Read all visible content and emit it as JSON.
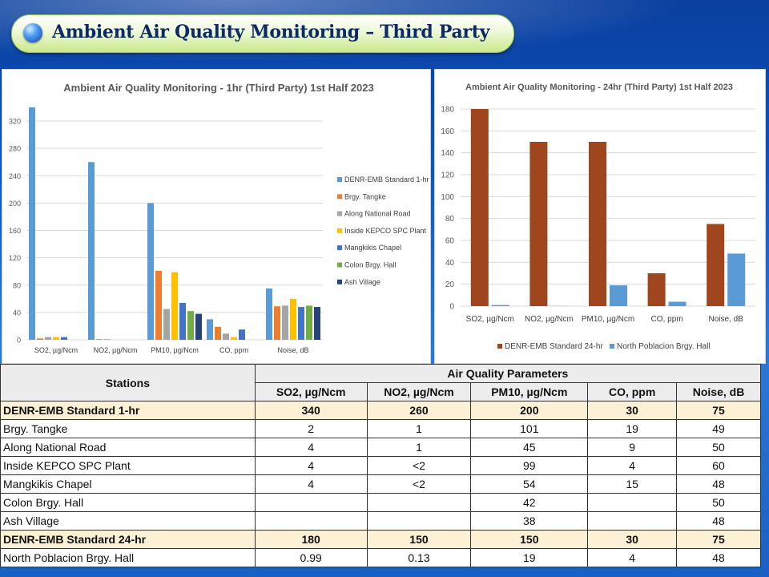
{
  "slide": {
    "title": "Ambient Air Quality Monitoring – Third Party"
  },
  "colors": {
    "title_text": "#0b2a66",
    "std_row_bg": "#fdf1d5"
  },
  "chart_data": [
    {
      "type": "bar",
      "title": "Ambient Air Quality Monitoring - 1hr (Third Party) 1st Half 2023",
      "categories": [
        "SO2, µg/Ncm",
        "NO2, µg/Ncm",
        "PM10, µg/Ncm",
        "CO, ppm",
        "Noise, dB"
      ],
      "ylim": [
        0,
        340
      ],
      "yticks": [
        0,
        40,
        80,
        120,
        160,
        200,
        240,
        280,
        320
      ],
      "grid": true,
      "legend_position": "right",
      "series": [
        {
          "name": "DENR-EMB Standard 1-hr",
          "color": "#5b9bd5",
          "values": [
            340,
            260,
            200,
            30,
            75
          ]
        },
        {
          "name": "Brgy. Tangke",
          "color": "#ed7d31",
          "values": [
            2,
            1,
            101,
            19,
            49
          ]
        },
        {
          "name": "Along National Road",
          "color": "#a5a5a5",
          "values": [
            4,
            1,
            45,
            9,
            50
          ]
        },
        {
          "name": "Inside KEPCO SPC Plant",
          "color": "#ffc000",
          "values": [
            4,
            0,
            99,
            4,
            60
          ]
        },
        {
          "name": "Mangkikis Chapel",
          "color": "#4472c4",
          "values": [
            4,
            0,
            54,
            15,
            48
          ]
        },
        {
          "name": "Colon Brgy. Hall",
          "color": "#70ad47",
          "values": [
            null,
            null,
            42,
            null,
            50
          ]
        },
        {
          "name": "Ash Village",
          "color": "#264478",
          "values": [
            null,
            null,
            38,
            null,
            48
          ]
        }
      ]
    },
    {
      "type": "bar",
      "title": "Ambient Air Quality Monitoring - 24hr (Third Party) 1st Half 2023",
      "categories": [
        "SO2, µg/Ncm",
        "NO2, µg/Ncm",
        "PM10, µg/Ncm",
        "CO, ppm",
        "Noise, dB"
      ],
      "ylim": [
        0,
        180
      ],
      "yticks": [
        0,
        20,
        40,
        60,
        80,
        100,
        120,
        140,
        160,
        180
      ],
      "grid": true,
      "legend_position": "bottom",
      "series": [
        {
          "name": "DENR-EMB Standard 24-hr",
          "color": "#a0461f",
          "values": [
            180,
            150,
            150,
            30,
            75
          ]
        },
        {
          "name": "North Poblacion Brgy. Hall",
          "color": "#5b9bd5",
          "values": [
            0.99,
            0.13,
            19,
            4,
            48
          ]
        }
      ]
    }
  ],
  "table": {
    "corner_header": "Stations",
    "group_header": "Air Quality Parameters",
    "columns": [
      "SO2, µg/Ncm",
      "NO2, µg/Ncm",
      "PM10, µg/Ncm",
      "CO, ppm",
      "Noise, dB"
    ],
    "rows": [
      {
        "station": "DENR-EMB Standard 1-hr",
        "standard": true,
        "values": [
          "340",
          "260",
          "200",
          "30",
          "75"
        ]
      },
      {
        "station": "Brgy. Tangke",
        "standard": false,
        "values": [
          "2",
          "1",
          "101",
          "19",
          "49"
        ]
      },
      {
        "station": "Along National Road",
        "standard": false,
        "values": [
          "4",
          "1",
          "45",
          "9",
          "50"
        ]
      },
      {
        "station": "Inside KEPCO SPC Plant",
        "standard": false,
        "values": [
          "4",
          "<2",
          "99",
          "4",
          "60"
        ]
      },
      {
        "station": "Mangkikis Chapel",
        "standard": false,
        "values": [
          "4",
          "<2",
          "54",
          "15",
          "48"
        ]
      },
      {
        "station": "Colon Brgy. Hall",
        "standard": false,
        "values": [
          "",
          "",
          "42",
          "",
          "50"
        ]
      },
      {
        "station": "Ash Village",
        "standard": false,
        "values": [
          "",
          "",
          "38",
          "",
          "48"
        ]
      },
      {
        "station": "DENR-EMB Standard 24-hr",
        "standard": true,
        "values": [
          "180",
          "150",
          "150",
          "30",
          "75"
        ]
      },
      {
        "station": "North Poblacion Brgy. Hall",
        "standard": false,
        "values": [
          "0.99",
          "0.13",
          "19",
          "4",
          "48"
        ]
      }
    ]
  }
}
